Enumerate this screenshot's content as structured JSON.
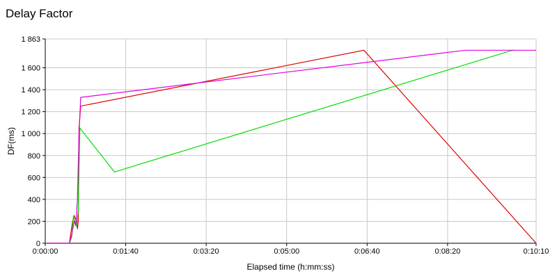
{
  "chart_data": {
    "type": "line",
    "title": "Delay Factor",
    "xlabel": "Elapsed time (h:mm:ss)",
    "ylabel": "DF(ms)",
    "xlim": [
      0,
      610
    ],
    "ylim": [
      0,
      1863
    ],
    "x_ticks": [
      {
        "value": 0,
        "label": "0:00:00"
      },
      {
        "value": 100,
        "label": "0:01:40"
      },
      {
        "value": 200,
        "label": "0:03:20"
      },
      {
        "value": 300,
        "label": "0:05:00"
      },
      {
        "value": 400,
        "label": "0:06:40"
      },
      {
        "value": 500,
        "label": "0:08:20"
      },
      {
        "value": 610,
        "label": "0:10:10"
      }
    ],
    "y_ticks": [
      {
        "value": 0,
        "label": "0"
      },
      {
        "value": 200,
        "label": "200"
      },
      {
        "value": 400,
        "label": "400"
      },
      {
        "value": 600,
        "label": "600"
      },
      {
        "value": 800,
        "label": "800"
      },
      {
        "value": 1000,
        "label": "1 000"
      },
      {
        "value": 1200,
        "label": "1 200"
      },
      {
        "value": 1400,
        "label": "1 400"
      },
      {
        "value": 1600,
        "label": "1 600"
      },
      {
        "value": 1863,
        "label": "1 863"
      }
    ],
    "grid": true,
    "series": [
      {
        "color": "#dd0000",
        "points": [
          [
            0,
            0
          ],
          [
            30,
            0
          ],
          [
            31,
            50
          ],
          [
            34,
            200
          ],
          [
            36,
            250
          ],
          [
            39,
            200
          ],
          [
            40,
            130
          ],
          [
            41,
            200
          ],
          [
            42,
            1050
          ],
          [
            44,
            1250
          ],
          [
            396,
            1760
          ],
          [
            610,
            0
          ]
        ]
      },
      {
        "color": "#00dd00",
        "points": [
          [
            0,
            0
          ],
          [
            30,
            0
          ],
          [
            33,
            60
          ],
          [
            35,
            250
          ],
          [
            37,
            200
          ],
          [
            39,
            150
          ],
          [
            41,
            300
          ],
          [
            43,
            1050
          ],
          [
            86,
            650
          ],
          [
            582,
            1763
          ]
        ]
      },
      {
        "color": "#e000e0",
        "points": [
          [
            0,
            0
          ],
          [
            30,
            0
          ],
          [
            33,
            80
          ],
          [
            36,
            200
          ],
          [
            38,
            160
          ],
          [
            40,
            400
          ],
          [
            42,
            1000
          ],
          [
            44,
            1330
          ],
          [
            522,
            1760
          ],
          [
            610,
            1760
          ]
        ]
      }
    ]
  }
}
